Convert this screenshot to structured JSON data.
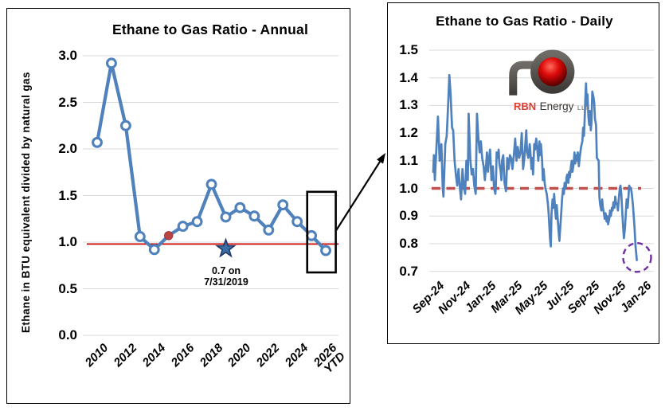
{
  "colors": {
    "series_blue": "#4f81bd",
    "annual_ref_red": "#cc0000",
    "daily_ref_red": "#c0504d",
    "marker_fill": "#ffffff",
    "red_dot": "#b94442",
    "star_fill": "#3a6ea5",
    "star_stroke": "#1f3864",
    "purple_circle": "#7030a0",
    "gridline": "#d9d9d9",
    "text": "#000000",
    "border": "#000000",
    "logo_tube": "#57534f",
    "logo_ball_light": "#ff6b5e",
    "logo_ball_mid": "#dd0a0a",
    "logo_ball_dark": "#550000",
    "logo_red": "#e23b2e",
    "logo_dark": "#3b3734",
    "logo_gray": "#8c8c8c"
  },
  "logo": {
    "rbn": "RBN",
    "energy": "Energy",
    "llc": "LLC"
  },
  "chart_data": [
    {
      "id": "annual",
      "type": "line",
      "title": "Ethane to Gas Ratio - Annual",
      "ylabel": "Ethane in BTU equivalent divided by natural gas",
      "ylim": [
        0.0,
        3.0
      ],
      "y_ticks": [
        "3.0",
        "2.5",
        "2.0",
        "1.5",
        "1.0",
        "0.5",
        "0.0"
      ],
      "grid": "horizontal",
      "legend": "none",
      "categories": [
        "2010",
        "2011",
        "2012",
        "2013",
        "2014",
        "2015",
        "2016",
        "2017",
        "2018",
        "2019",
        "2020",
        "2021",
        "2022",
        "2023",
        "2024",
        "2025",
        "2026 YTD"
      ],
      "x_tick_labels": [
        "2010",
        "2012",
        "2014",
        "2016",
        "2018",
        "2020",
        "2022",
        "2024",
        "2026\nYTD"
      ],
      "values": [
        2.07,
        2.92,
        2.25,
        1.06,
        0.92,
        1.07,
        1.17,
        1.22,
        1.62,
        1.27,
        1.37,
        1.28,
        1.13,
        1.4,
        1.22,
        1.07,
        0.91
      ],
      "reference_line": 0.98,
      "highlight_point": {
        "category": "2015",
        "index": 5,
        "value": 1.07
      },
      "star_annotation": {
        "category": "2019",
        "index": 9,
        "plot_value": 0.93,
        "label": "0.7 on\n7/31/2019"
      },
      "box_annotation": {
        "x_from_index": 14.7,
        "x_to_index": 16.7,
        "v_from": 0.675,
        "v_to": 1.54
      }
    },
    {
      "id": "daily",
      "type": "line",
      "title": "Ethane to Gas Ratio - Daily",
      "ylim": [
        0.7,
        1.5
      ],
      "y_ticks": [
        "1.5",
        "1.4",
        "1.3",
        "1.2",
        "1.1",
        "1.0",
        "0.9",
        "0.8",
        "0.7"
      ],
      "grid": "horizontal",
      "legend": "none",
      "x_tick_labels": [
        "Sep-24",
        "Nov-24",
        "Jan-25",
        "Mar-25",
        "May-25",
        "Jul-25",
        "Sep-25",
        "Nov-25",
        "Jan-26"
      ],
      "x_months_per_tick": 2,
      "reference_line": 1.0,
      "circle_annotation": {
        "t_months": 15.75,
        "value": 0.75,
        "rx_months": 1.08,
        "ry_value": 0.052
      },
      "points": [
        [
          0,
          1.06
        ],
        [
          0.05,
          1.12
        ],
        [
          0.12,
          1.03
        ],
        [
          0.36,
          1.26
        ],
        [
          0.49,
          1.1
        ],
        [
          0.63,
          1.16
        ],
        [
          0.73,
          1.0
        ],
        [
          0.79,
          0.97
        ],
        [
          0.93,
          1.16
        ],
        [
          1.04,
          1.19
        ],
        [
          1.14,
          1.29
        ],
        [
          1.24,
          1.41
        ],
        [
          1.34,
          1.34
        ],
        [
          1.45,
          1.22
        ],
        [
          1.54,
          1.21
        ],
        [
          1.65,
          1.1
        ],
        [
          1.75,
          1.05
        ],
        [
          1.85,
          1.01
        ],
        [
          1.95,
          1.07
        ],
        [
          2.06,
          1.0
        ],
        [
          2.15,
          0.96
        ],
        [
          2.26,
          1.07
        ],
        [
          2.36,
          1.01
        ],
        [
          2.46,
          0.98
        ],
        [
          2.56,
          1.1
        ],
        [
          2.67,
          1.03
        ],
        [
          2.73,
          1.27
        ],
        [
          2.87,
          1.1
        ],
        [
          2.97,
          1.05
        ],
        [
          3.07,
          1.07
        ],
        [
          3.17,
          1.01
        ],
        [
          3.28,
          0.98
        ],
        [
          3.38,
          1.27
        ],
        [
          3.48,
          1.19
        ],
        [
          3.58,
          1.13
        ],
        [
          3.68,
          1.17
        ],
        [
          3.78,
          1.11
        ],
        [
          3.89,
          1.08
        ],
        [
          3.99,
          1.03
        ],
        [
          4.09,
          1.09
        ],
        [
          4.15,
          1.13
        ],
        [
          4.23,
          1.06
        ],
        [
          4.29,
          1.1
        ],
        [
          4.39,
          1.14
        ],
        [
          4.5,
          1.03
        ],
        [
          4.6,
          1.08
        ],
        [
          4.7,
          1.0
        ],
        [
          4.8,
          0.98
        ],
        [
          4.84,
          1.01
        ],
        [
          4.9,
          1.13
        ],
        [
          5.01,
          1.11
        ],
        [
          5.05,
          1.14
        ],
        [
          5.11,
          1.09
        ],
        [
          5.21,
          1.06
        ],
        [
          5.27,
          1.03
        ],
        [
          5.31,
          1.1
        ],
        [
          5.41,
          1.12
        ],
        [
          5.51,
          1.02
        ],
        [
          5.62,
          0.99
        ],
        [
          5.72,
          1.11
        ],
        [
          5.82,
          1.07
        ],
        [
          5.92,
          1.12
        ],
        [
          6.02,
          1.11
        ],
        [
          6.12,
          1.07
        ],
        [
          6.23,
          1.12
        ],
        [
          6.33,
          1.18
        ],
        [
          6.43,
          1.1
        ],
        [
          6.53,
          1.15
        ],
        [
          6.64,
          1.11
        ],
        [
          6.74,
          1.13
        ],
        [
          6.84,
          1.2
        ],
        [
          6.94,
          1.07
        ],
        [
          7.04,
          1.11
        ],
        [
          7.19,
          1.21
        ],
        [
          7.25,
          1.13
        ],
        [
          7.35,
          1.11
        ],
        [
          7.45,
          1.16
        ],
        [
          7.51,
          1.13
        ],
        [
          7.59,
          1.07
        ],
        [
          7.65,
          1.11
        ],
        [
          7.71,
          1.05
        ],
        [
          7.8,
          1.16
        ],
        [
          7.86,
          1.14
        ],
        [
          7.96,
          1.18
        ],
        [
          8.06,
          1.13
        ],
        [
          8.12,
          1.1
        ],
        [
          8.2,
          1.17
        ],
        [
          8.26,
          1.12
        ],
        [
          8.32,
          1.16
        ],
        [
          8.41,
          1.1
        ],
        [
          8.47,
          1.03
        ],
        [
          8.53,
          1.07
        ],
        [
          8.61,
          1.02
        ],
        [
          8.67,
          1.0
        ],
        [
          8.77,
          0.98
        ],
        [
          8.87,
          0.94
        ],
        [
          8.93,
          0.9
        ],
        [
          9.02,
          0.82
        ],
        [
          9.08,
          0.79
        ],
        [
          9.14,
          0.91
        ],
        [
          9.22,
          0.96
        ],
        [
          9.28,
          0.93
        ],
        [
          9.34,
          0.98
        ],
        [
          9.42,
          0.92
        ],
        [
          9.48,
          0.89
        ],
        [
          9.54,
          0.94
        ],
        [
          9.63,
          0.88
        ],
        [
          9.69,
          0.84
        ],
        [
          9.75,
          0.81
        ],
        [
          9.83,
          0.87
        ],
        [
          9.89,
          0.91
        ],
        [
          9.95,
          0.96
        ],
        [
          10.03,
          1.0
        ],
        [
          10.09,
          0.98
        ],
        [
          10.15,
          1.02
        ],
        [
          10.24,
          1.0
        ],
        [
          10.3,
          1.04
        ],
        [
          10.36,
          1.05
        ],
        [
          10.44,
          1.02
        ],
        [
          10.5,
          1.06
        ],
        [
          10.56,
          1.04
        ],
        [
          10.64,
          1.08
        ],
        [
          10.7,
          1.1
        ],
        [
          10.76,
          1.06
        ],
        [
          10.85,
          1.09
        ],
        [
          10.91,
          1.13
        ],
        [
          10.97,
          1.09
        ],
        [
          11.05,
          1.12
        ],
        [
          11.11,
          1.1
        ],
        [
          11.17,
          1.13
        ],
        [
          11.25,
          1.08
        ],
        [
          11.31,
          1.11
        ],
        [
          11.42,
          1.15
        ],
        [
          11.52,
          1.17
        ],
        [
          11.58,
          1.22
        ],
        [
          11.64,
          1.19
        ],
        [
          11.7,
          1.25
        ],
        [
          11.75,
          1.32
        ],
        [
          11.8,
          1.38
        ],
        [
          11.86,
          1.3
        ],
        [
          11.92,
          1.34
        ],
        [
          11.99,
          1.26
        ],
        [
          12.05,
          1.23
        ],
        [
          12.11,
          1.28
        ],
        [
          12.17,
          1.21
        ],
        [
          12.23,
          1.24
        ],
        [
          12.29,
          1.35
        ],
        [
          12.38,
          1.33
        ],
        [
          12.44,
          1.31
        ],
        [
          12.5,
          1.25
        ],
        [
          12.58,
          1.23
        ],
        [
          12.64,
          1.11
        ],
        [
          12.78,
          1.1
        ],
        [
          12.84,
          0.97
        ],
        [
          12.9,
          0.94
        ],
        [
          12.99,
          0.92
        ],
        [
          13.05,
          0.96
        ],
        [
          13.11,
          0.93
        ],
        [
          13.19,
          0.91
        ],
        [
          13.25,
          0.89
        ],
        [
          13.31,
          0.91
        ],
        [
          13.39,
          0.88
        ],
        [
          13.45,
          0.9
        ],
        [
          13.51,
          0.87
        ],
        [
          13.6,
          0.89
        ],
        [
          13.66,
          0.92
        ],
        [
          13.72,
          0.9
        ],
        [
          13.8,
          0.93
        ],
        [
          13.86,
          0.92
        ],
        [
          13.92,
          0.95
        ],
        [
          14.0,
          0.93
        ],
        [
          14.06,
          0.97
        ],
        [
          14.12,
          0.95
        ],
        [
          14.21,
          0.94
        ],
        [
          14.27,
          0.92
        ],
        [
          14.33,
          0.96
        ],
        [
          14.41,
          1.0
        ],
        [
          14.47,
          1.01
        ],
        [
          14.53,
          0.98
        ],
        [
          14.61,
          0.91
        ],
        [
          14.67,
          0.86
        ],
        [
          14.73,
          0.82
        ],
        [
          14.82,
          0.86
        ],
        [
          14.88,
          0.91
        ],
        [
          14.94,
          0.96
        ],
        [
          15.02,
          0.93
        ],
        [
          15.08,
          0.97
        ],
        [
          15.14,
          1.01
        ],
        [
          15.22,
          1.0
        ],
        [
          15.28,
          1.0
        ],
        [
          15.34,
          0.98
        ],
        [
          15.43,
          0.94
        ],
        [
          15.49,
          0.9
        ],
        [
          15.55,
          0.86
        ],
        [
          15.63,
          0.79
        ],
        [
          15.69,
          0.76
        ],
        [
          15.73,
          0.74
        ]
      ]
    }
  ],
  "connector": {
    "from": [
      421,
      291
    ],
    "to": [
      484,
      192
    ]
  }
}
